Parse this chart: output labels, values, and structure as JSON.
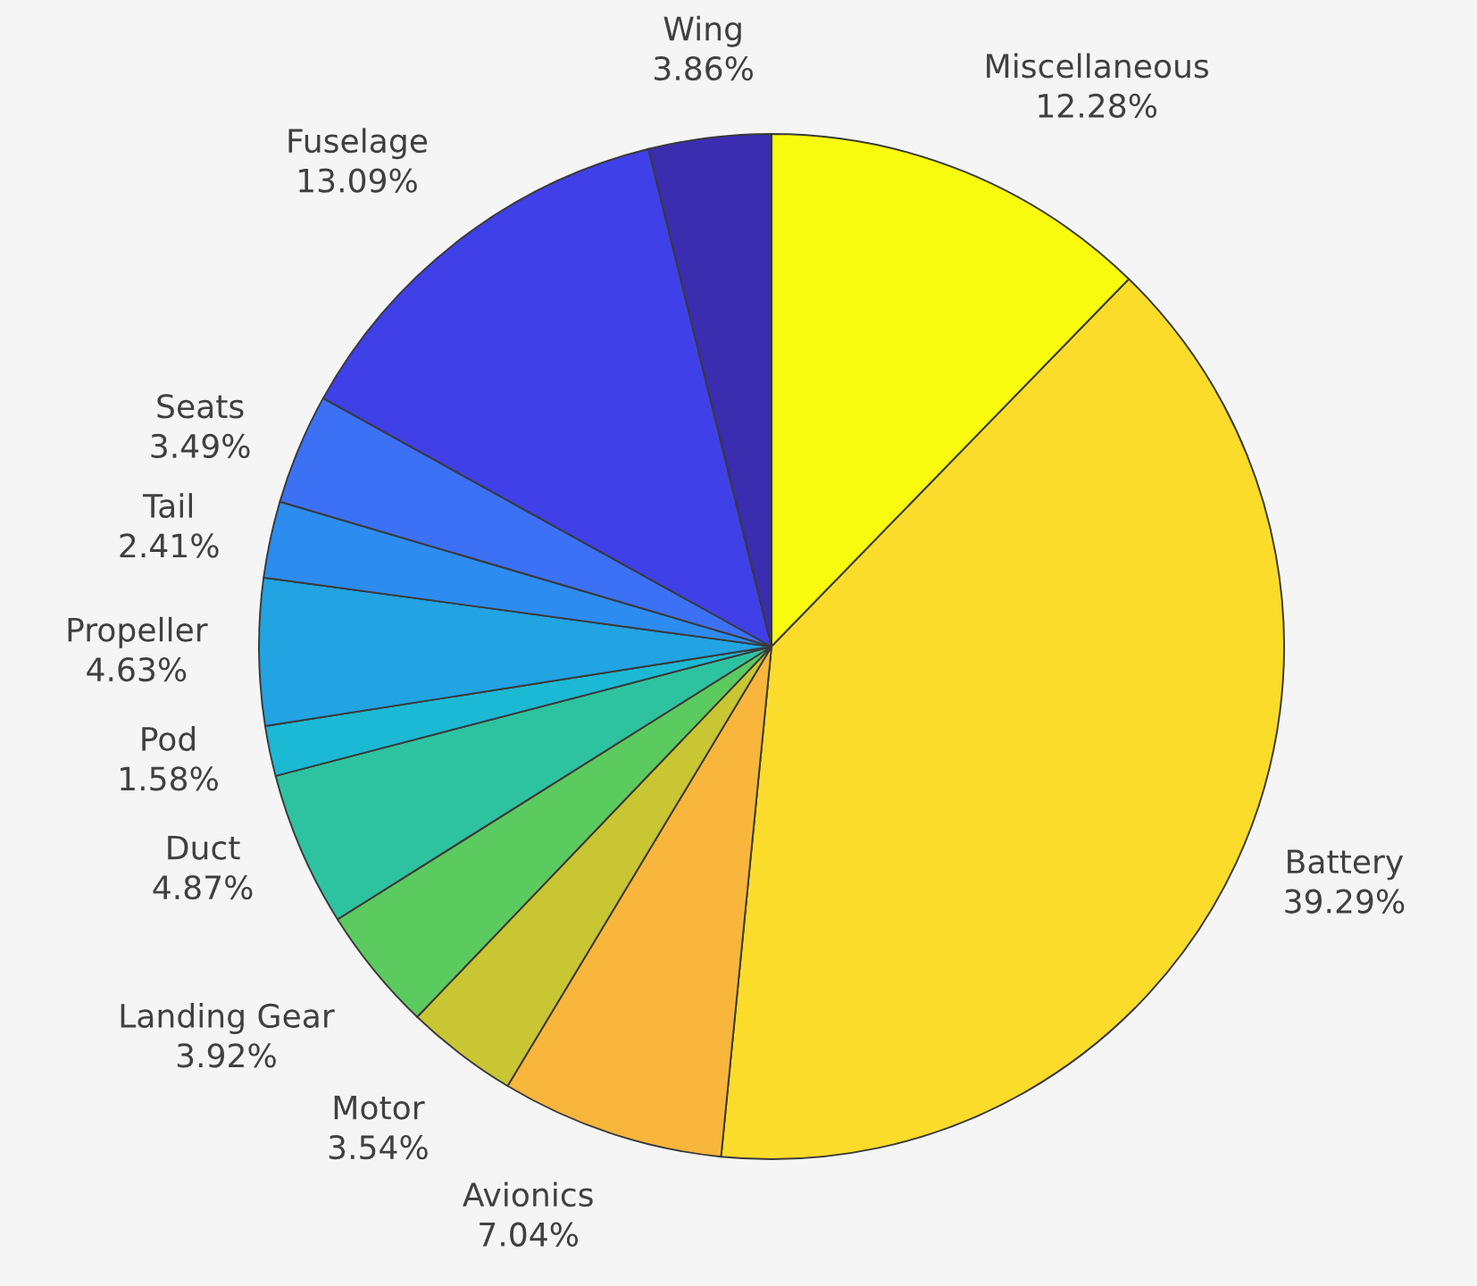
{
  "chart_data": {
    "type": "pie",
    "categories": [
      "Miscellaneous",
      "Battery",
      "Avionics",
      "Motor",
      "Landing Gear",
      "Duct",
      "Pod",
      "Propeller",
      "Tail",
      "Seats",
      "Fuselage",
      "Wing"
    ],
    "values": [
      12.28,
      39.29,
      7.04,
      3.54,
      3.92,
      4.87,
      1.58,
      4.63,
      2.41,
      3.49,
      13.09,
      3.86
    ],
    "value_labels": [
      "12.28%",
      "39.29%",
      "7.04%",
      "3.54%",
      "3.92%",
      "4.87%",
      "1.58%",
      "4.63%",
      "2.41%",
      "3.49%",
      "13.09%",
      "3.86%"
    ],
    "colors": [
      "#f9fb0e",
      "#fcdc2a",
      "#f9b63c",
      "#c9c634",
      "#5ccb5f",
      "#2ec3a0",
      "#1cb9d5",
      "#22a3e2",
      "#2d8cf0",
      "#3c71f5",
      "#4040e8",
      "#3a2db0"
    ]
  }
}
